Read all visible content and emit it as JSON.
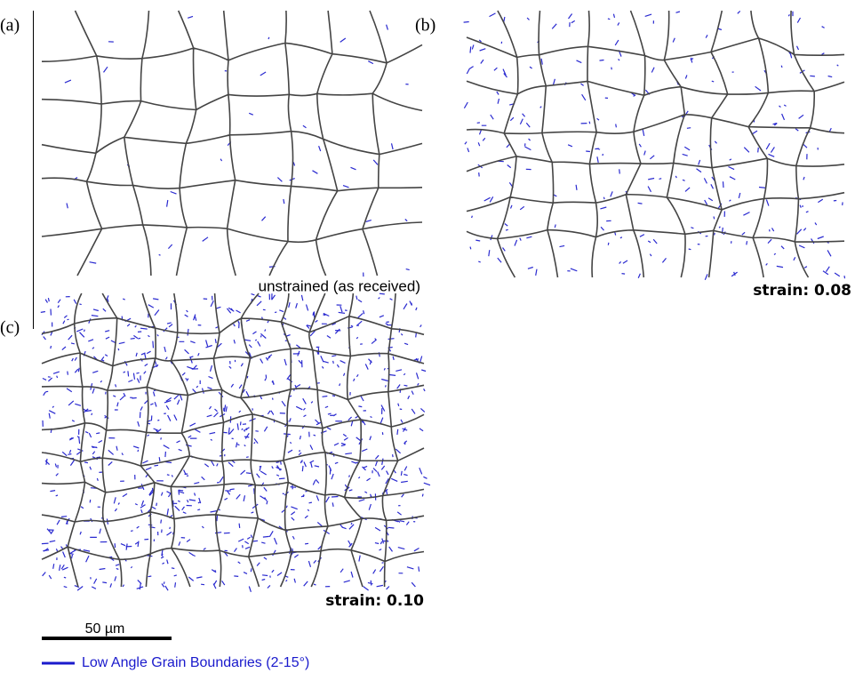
{
  "panels": [
    {
      "label": "(a)",
      "caption": "unstrained (as received)"
    },
    {
      "label": "(b)",
      "caption": "strain: 0.08"
    },
    {
      "label": "(c)",
      "caption": "strain: 0.10"
    }
  ],
  "scale_bar": {
    "label": "50 µm"
  },
  "legend": {
    "label": "Low Angle Grain Boundaries (2-15°)"
  }
}
